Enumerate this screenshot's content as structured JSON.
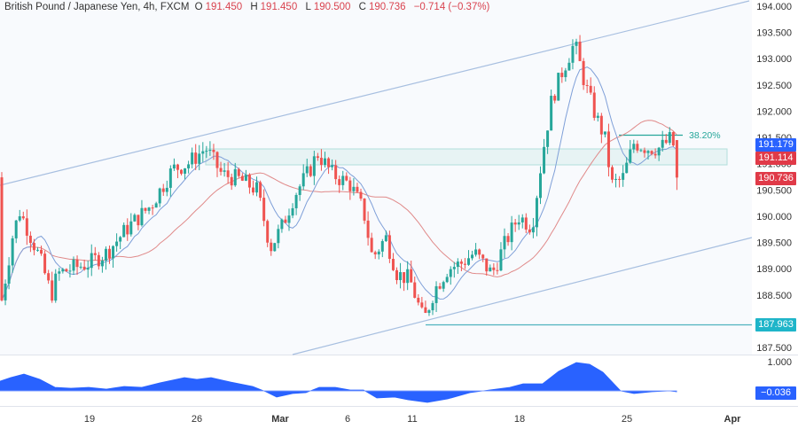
{
  "header": {
    "symbol": "British Pound / Japanese Yen, 4h, FXCM",
    "o_label": "O",
    "o": "191.450",
    "h_label": "H",
    "h": "191.450",
    "l_label": "L",
    "l": "190.500",
    "c_label": "C",
    "c": "190.736",
    "change": "−0.714 (−0.37%)"
  },
  "price_axis": {
    "ticks": [
      "194.000",
      "193.500",
      "193.000",
      "192.500",
      "192.000",
      "191.500",
      "191.000",
      "190.500",
      "190.000",
      "189.500",
      "189.000",
      "188.500",
      "187.500"
    ],
    "tags": [
      {
        "label": "191.179",
        "color": "#2962ff"
      },
      {
        "label": "191.114",
        "color": "#e03a48"
      },
      {
        "label": "190.736",
        "color": "#e03a48"
      },
      {
        "label": "187.963",
        "color": "#1fb5c9"
      }
    ]
  },
  "oscillator_axis": {
    "top": "1.000",
    "value_tag": "−0.036",
    "value_color": "#2962ff"
  },
  "time_axis": {
    "labels": [
      "19",
      "26",
      "Mar",
      "6",
      "11",
      "18",
      "25",
      "Apr"
    ]
  },
  "annotations": {
    "fib_label": "38.20%"
  },
  "colors": {
    "up": "#26a69a",
    "down": "#ef5350",
    "ma_fast": "#7e9fd8",
    "ma_slow": "#e08a8a",
    "channel": "#a7bfe0",
    "zone": "#b2dfdb",
    "osc": "#2962ff"
  },
  "chart_data": {
    "type": "candlestick",
    "title": "British Pound / Japanese Yen, 4h, FXCM",
    "last": {
      "open": 191.45,
      "high": 191.45,
      "low": 190.5,
      "close": 190.736,
      "change": -0.714,
      "change_pct": -0.37
    },
    "x_ticks": [
      "19",
      "26",
      "Mar",
      "6",
      "11",
      "18",
      "25",
      "Apr"
    ],
    "ylim": [
      187.4,
      194.1
    ],
    "key_levels": {
      "resistance_zone": [
        191.0,
        191.3
      ],
      "support_line": 187.963,
      "fib_38_2": 191.58,
      "swing_high": 193.55,
      "swing_low": 187.96
    },
    "channel": {
      "upper": [
        [
          0,
          190.6
        ],
        [
          845,
          194.1
        ]
      ],
      "lower": [
        [
          330,
          187.5
        ],
        [
          845,
          189.6
        ]
      ]
    },
    "moving_averages": [
      {
        "name": "MA fast",
        "value": 191.179
      },
      {
        "name": "MA slow",
        "value": 191.114
      }
    ],
    "oscillator": {
      "range_top": 1.0,
      "last_value": -0.036
    },
    "price_path_approx": [
      {
        "x": "start",
        "close": 188.5
      },
      {
        "x": "~15",
        "close": 190.0
      },
      {
        "x": "~17",
        "close": 189.0
      },
      {
        "x": "19",
        "close": 189.2
      },
      {
        "x": "~23",
        "close": 190.2
      },
      {
        "x": "26",
        "close": 191.3
      },
      {
        "x": "~28",
        "close": 190.7
      },
      {
        "x": "Mar 1",
        "close": 189.3
      },
      {
        "x": "Mar 4",
        "close": 191.1
      },
      {
        "x": "6",
        "close": 190.4
      },
      {
        "x": "~8",
        "close": 188.9
      },
      {
        "x": "11",
        "close": 188.0
      },
      {
        "x": "~14",
        "close": 189.3
      },
      {
        "x": "18",
        "close": 189.7
      },
      {
        "x": "~20",
        "close": 192.7
      },
      {
        "x": "~21",
        "close": 193.5
      },
      {
        "x": "~22",
        "close": 192.0
      },
      {
        "x": "25",
        "close": 190.7
      },
      {
        "x": "~27",
        "close": 191.4
      },
      {
        "x": "last",
        "close": 190.736
      }
    ]
  }
}
